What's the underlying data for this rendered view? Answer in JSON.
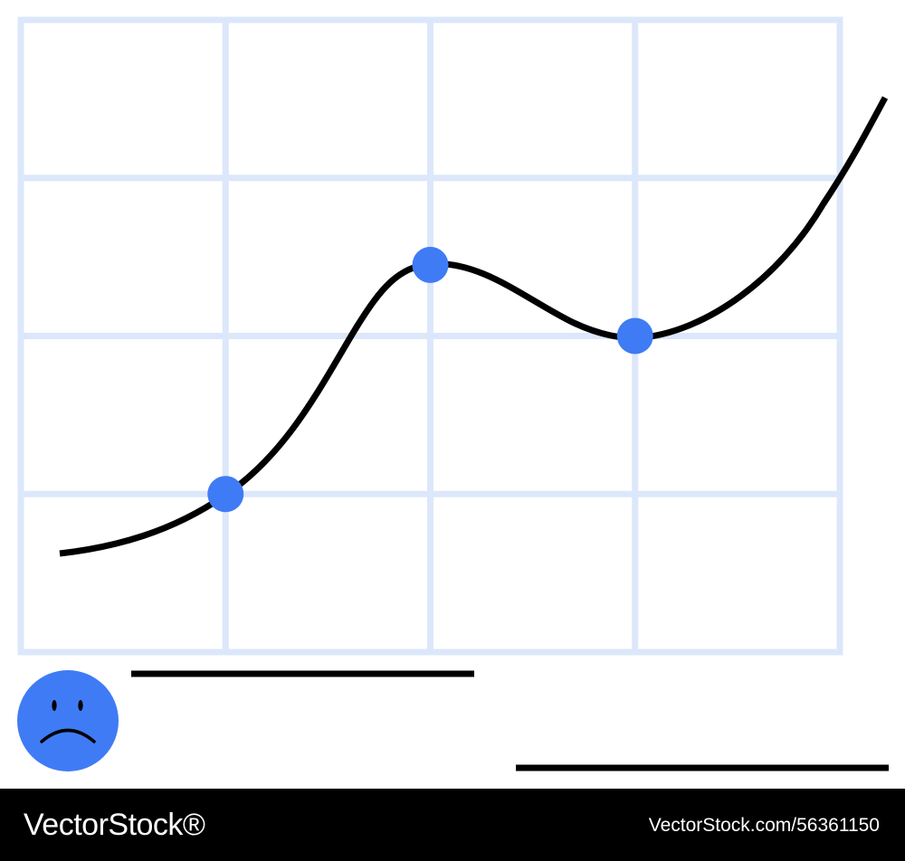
{
  "colors": {
    "grid": "#dce7fb",
    "line": "#000000",
    "marker": "#3f7bf5",
    "background": "#ffffff",
    "footer": "#000000",
    "footer_text": "#ffffff"
  },
  "chart_data": {
    "type": "line",
    "title": "",
    "xlabel": "",
    "ylabel": "",
    "grid": true,
    "x_divisions": 4,
    "y_divisions": 4,
    "xlim": [
      0,
      4
    ],
    "ylim": [
      0,
      4
    ],
    "series": [
      {
        "values_xy": [
          [
            0.2,
            0.63
          ],
          [
            1.0,
            1.0
          ],
          [
            1.6,
            2.0
          ],
          [
            2.0,
            2.45
          ],
          [
            2.6,
            2.2
          ],
          [
            3.0,
            2.0
          ],
          [
            3.6,
            2.3
          ],
          [
            4.0,
            2.9
          ],
          [
            4.25,
            3.6
          ]
        ],
        "highlighted_points": [
          [
            1.0,
            1.0
          ],
          [
            2.0,
            2.45
          ],
          [
            3.0,
            2.0
          ]
        ]
      }
    ]
  },
  "decorations": {
    "sad_face_icon": "sad-face",
    "lines": 2
  },
  "footer": {
    "brand": "VectorStock®",
    "image_id": "VectorStock.com/56361150"
  }
}
